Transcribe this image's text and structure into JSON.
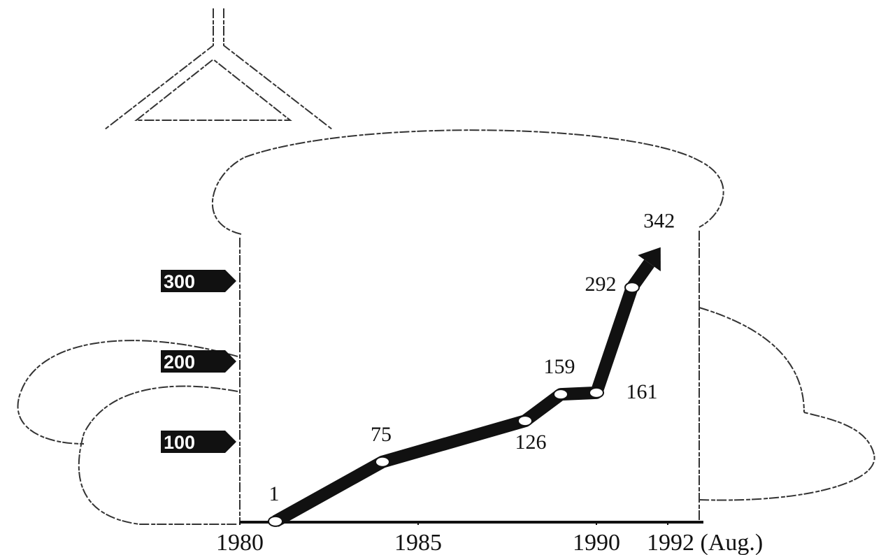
{
  "chart_data": {
    "type": "line",
    "x": [
      1981,
      1984,
      1988,
      1989,
      1990,
      1991,
      1991.8
    ],
    "values": [
      1,
      75,
      126,
      159,
      161,
      292,
      342
    ],
    "color": "#111111",
    "xlim": [
      1980,
      1993
    ],
    "xticks": [
      1980,
      1985,
      1990,
      {
        "value": 1992,
        "label": "1992 (Aug.)"
      }
    ],
    "ylim": [
      0,
      350
    ],
    "yticks": [
      100,
      200,
      300
    ]
  }
}
